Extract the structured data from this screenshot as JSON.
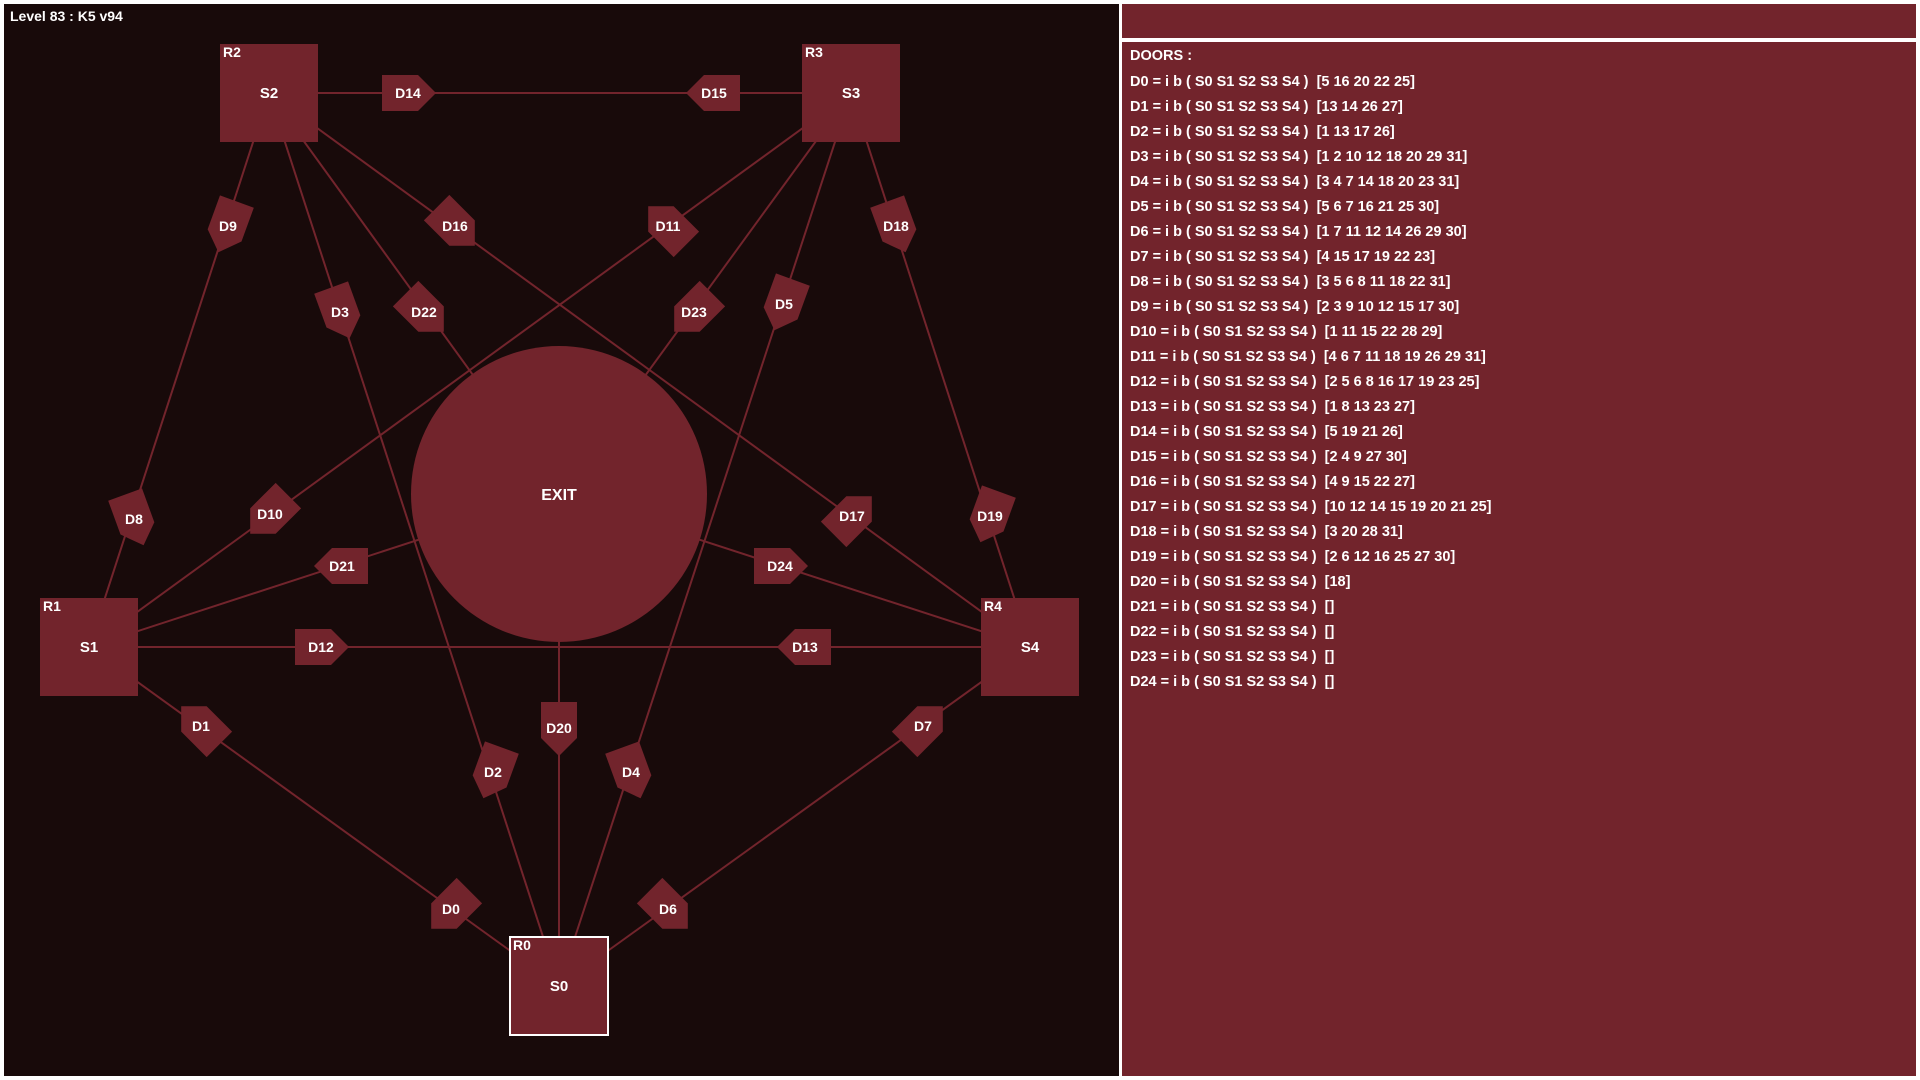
{
  "level_title": "Level 83 : K5 v94",
  "colors": {
    "background": "#180a0a",
    "accent": "#72242c",
    "line": "#72242c",
    "text": "#ffffff",
    "active_border": "#ffffff"
  },
  "exit_label": "EXIT",
  "rooms": [
    {
      "id": "R0",
      "name": "S0",
      "active": true
    },
    {
      "id": "R1",
      "name": "S1",
      "active": false
    },
    {
      "id": "R2",
      "name": "S2",
      "active": false
    },
    {
      "id": "R3",
      "name": "S3",
      "active": false
    },
    {
      "id": "R4",
      "name": "S4",
      "active": false
    }
  ],
  "doors_panel": {
    "heading": "DOORS :",
    "doors": [
      {
        "label": "D0",
        "text": "D0 = i b ( S0 S1 S2 S3 S4 )  [5 16 20 22 25]"
      },
      {
        "label": "D1",
        "text": "D1 = i b ( S0 S1 S2 S3 S4 )  [13 14 26 27]"
      },
      {
        "label": "D2",
        "text": "D2 = i b ( S0 S1 S2 S3 S4 )  [1 13 17 26]"
      },
      {
        "label": "D3",
        "text": "D3 = i b ( S0 S1 S2 S3 S4 )  [1 2 10 12 18 20 29 31]"
      },
      {
        "label": "D4",
        "text": "D4 = i b ( S0 S1 S2 S3 S4 )  [3 4 7 14 18 20 23 31]"
      },
      {
        "label": "D5",
        "text": "D5 = i b ( S0 S1 S2 S3 S4 )  [5 6 7 16 21 25 30]"
      },
      {
        "label": "D6",
        "text": "D6 = i b ( S0 S1 S2 S3 S4 )  [1 7 11 12 14 26 29 30]"
      },
      {
        "label": "D7",
        "text": "D7 = i b ( S0 S1 S2 S3 S4 )  [4 15 17 19 22 23]"
      },
      {
        "label": "D8",
        "text": "D8 = i b ( S0 S1 S2 S3 S4 )  [3 5 6 8 11 18 22 31]"
      },
      {
        "label": "D9",
        "text": "D9 = i b ( S0 S1 S2 S3 S4 )  [2 3 9 10 12 15 17 30]"
      },
      {
        "label": "D10",
        "text": "D10 = i b ( S0 S1 S2 S3 S4 )  [1 11 15 22 28 29]"
      },
      {
        "label": "D11",
        "text": "D11 = i b ( S0 S1 S2 S3 S4 )  [4 6 7 11 18 19 26 29 31]"
      },
      {
        "label": "D12",
        "text": "D12 = i b ( S0 S1 S2 S3 S4 )  [2 5 6 8 16 17 19 23 25]"
      },
      {
        "label": "D13",
        "text": "D13 = i b ( S0 S1 S2 S3 S4 )  [1 8 13 23 27]"
      },
      {
        "label": "D14",
        "text": "D14 = i b ( S0 S1 S2 S3 S4 )  [5 19 21 26]"
      },
      {
        "label": "D15",
        "text": "D15 = i b ( S0 S1 S2 S3 S4 )  [2 4 9 27 30]"
      },
      {
        "label": "D16",
        "text": "D16 = i b ( S0 S1 S2 S3 S4 )  [4 9 15 22 27]"
      },
      {
        "label": "D17",
        "text": "D17 = i b ( S0 S1 S2 S3 S4 )  [10 12 14 15 19 20 21 25]"
      },
      {
        "label": "D18",
        "text": "D18 = i b ( S0 S1 S2 S3 S4 )  [3 20 28 31]"
      },
      {
        "label": "D19",
        "text": "D19 = i b ( S0 S1 S2 S3 S4 )  [2 6 12 16 25 27 30]"
      },
      {
        "label": "D20",
        "text": "D20 = i b ( S0 S1 S2 S3 S4 )  [18]"
      },
      {
        "label": "D21",
        "text": "D21 = i b ( S0 S1 S2 S3 S4 )  []"
      },
      {
        "label": "D22",
        "text": "D22 = i b ( S0 S1 S2 S3 S4 )  []"
      },
      {
        "label": "D23",
        "text": "D23 = i b ( S0 S1 S2 S3 S4 )  []"
      },
      {
        "label": "D24",
        "text": "D24 = i b ( S0 S1 S2 S3 S4 )  []"
      }
    ]
  }
}
